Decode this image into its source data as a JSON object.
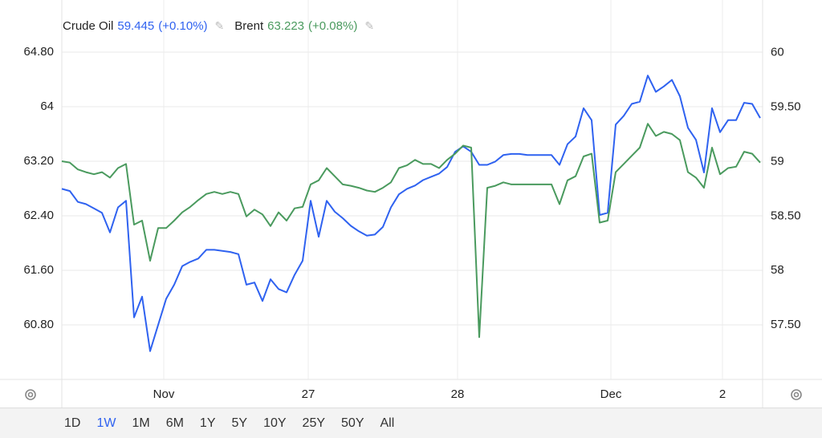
{
  "chart_data": {
    "type": "line",
    "series": [
      {
        "name": "Crude Oil",
        "quote": "59.445",
        "change": "(+0.10%)",
        "color": "#2f62f0",
        "axis": "y2",
        "values": [
          58.75,
          58.73,
          58.63,
          58.61,
          58.57,
          58.53,
          58.35,
          58.58,
          58.64,
          57.57,
          57.76,
          57.26,
          57.5,
          57.74,
          57.87,
          58.04,
          58.08,
          58.11,
          58.19,
          58.19,
          58.18,
          58.17,
          58.15,
          57.87,
          57.89,
          57.72,
          57.92,
          57.83,
          57.8,
          57.96,
          58.09,
          58.64,
          58.31,
          58.64,
          58.54,
          58.48,
          58.41,
          58.36,
          58.32,
          58.33,
          58.4,
          58.58,
          58.7,
          58.75,
          58.78,
          58.83,
          58.86,
          58.89,
          58.95,
          59.09,
          59.14,
          59.09,
          58.97,
          58.97,
          59.0,
          59.06,
          59.07,
          59.07,
          59.06,
          59.06,
          59.06,
          59.06,
          58.97,
          59.16,
          59.23,
          59.49,
          59.38,
          58.51,
          58.53,
          59.34,
          59.42,
          59.53,
          59.55,
          59.79,
          59.64,
          59.69,
          59.75,
          59.6,
          59.31,
          59.2,
          58.9,
          59.49,
          59.27,
          59.38,
          59.38,
          59.54,
          59.53,
          59.4
        ]
      },
      {
        "name": "Brent",
        "quote": "63.223",
        "change": "(+0.08%)",
        "color": "#4a9a5e",
        "axis": "y",
        "values": [
          63.2,
          63.18,
          63.08,
          63.04,
          63.01,
          63.04,
          62.96,
          63.1,
          63.16,
          62.27,
          62.33,
          61.74,
          62.22,
          62.22,
          62.33,
          62.45,
          62.53,
          62.63,
          62.72,
          62.75,
          62.72,
          62.75,
          62.72,
          62.39,
          62.49,
          62.42,
          62.25,
          62.45,
          62.33,
          62.51,
          62.53,
          62.86,
          62.92,
          63.1,
          62.98,
          62.86,
          62.84,
          62.81,
          62.77,
          62.75,
          62.81,
          62.89,
          63.1,
          63.14,
          63.22,
          63.16,
          63.16,
          63.1,
          63.22,
          63.31,
          63.43,
          63.4,
          60.62,
          62.81,
          62.84,
          62.89,
          62.86,
          62.86,
          62.86,
          62.86,
          62.86,
          62.86,
          62.57,
          62.92,
          62.98,
          63.27,
          63.31,
          62.3,
          62.33,
          63.04,
          63.16,
          63.28,
          63.4,
          63.75,
          63.57,
          63.63,
          63.6,
          63.51,
          63.04,
          62.96,
          62.81,
          63.4,
          63.01,
          63.1,
          63.12,
          63.34,
          63.31,
          63.18
        ]
      }
    ],
    "xlim": [
      0,
      87
    ],
    "xticks": [
      {
        "value": 12.7,
        "label": "Nov"
      },
      {
        "value": 30.7,
        "label": "27"
      },
      {
        "value": 49.3,
        "label": "28"
      },
      {
        "value": 68.4,
        "label": "Dec"
      },
      {
        "value": 82.3,
        "label": "2"
      }
    ],
    "ylim": [
      60,
      65
    ],
    "yticks": [
      {
        "value": 60.8,
        "label": "60.80"
      },
      {
        "value": 61.6,
        "label": "61.60"
      },
      {
        "value": 62.4,
        "label": "62.40"
      },
      {
        "value": 63.2,
        "label": "63.20"
      },
      64,
      {
        "value": 64.8,
        "label": "64.80"
      }
    ],
    "y2lim": [
      57,
      60.13
    ],
    "y2ticks": [
      {
        "value": 57.5,
        "label": "57.50"
      },
      58,
      {
        "value": 58.5,
        "label": "58.50"
      },
      59,
      {
        "value": 59.5,
        "label": "59.50"
      },
      60
    ],
    "grid": true
  },
  "toolbar": {
    "ranges": [
      "1D",
      "1W",
      "1M",
      "6M",
      "1Y",
      "5Y",
      "10Y",
      "25Y",
      "50Y",
      "All"
    ],
    "selected": 1
  }
}
